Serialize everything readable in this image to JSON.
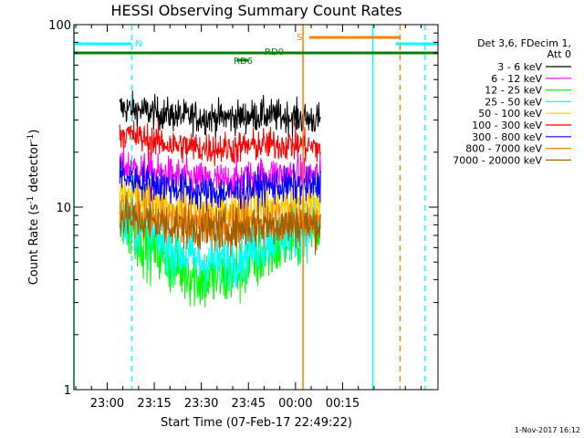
{
  "chart_data": {
    "type": "line",
    "title": "HESSI Observing Summary Count Rates",
    "xlabel": "Start Time (07-Feb-17 22:49:22)",
    "ylabel_main": "Count Rate (s",
    "ylabel_sup1": "-1",
    "ylabel_mid": " detector",
    "ylabel_sup2": "-1",
    "ylabel_end": ")",
    "y_scale": "log",
    "ylim": [
      1,
      100
    ],
    "xlim_minutes": [
      -10.6,
      105.4
    ],
    "x_ticks": [
      {
        "minutes": 0,
        "label": "23:00"
      },
      {
        "minutes": 15,
        "label": "23:15"
      },
      {
        "minutes": 30,
        "label": "23:30"
      },
      {
        "minutes": 45,
        "label": "23:45"
      },
      {
        "minutes": 60,
        "label": "00:00"
      },
      {
        "minutes": 75,
        "label": "00:15"
      }
    ],
    "y_ticks": [
      {
        "value": 1,
        "label": "1"
      },
      {
        "value": 10,
        "label": "10"
      },
      {
        "value": 100,
        "label": "100"
      }
    ],
    "data_span_minutes": [
      4,
      68
    ],
    "legend_header": [
      "Det 3,6, FDecim 1,",
      "Att 0"
    ],
    "legend_position": "right",
    "series": [
      {
        "name": "3 - 6 keV",
        "color": "#000000",
        "minutes": [
          4,
          10,
          20,
          30,
          40,
          50,
          60,
          68
        ],
        "values": [
          35,
          34,
          32,
          31,
          31,
          32,
          31,
          30
        ],
        "noise": 0.045
      },
      {
        "name": "6 - 12 keV",
        "color": "#ff00ff",
        "minutes": [
          4,
          10,
          20,
          30,
          40,
          50,
          60,
          68
        ],
        "values": [
          17,
          16,
          15,
          14,
          14,
          15,
          15,
          15
        ],
        "noise": 0.05
      },
      {
        "name": "12 - 25 keV",
        "color": "#00ff00",
        "minutes": [
          4,
          10,
          20,
          30,
          40,
          50,
          60,
          68
        ],
        "values": [
          9,
          7,
          5,
          4,
          4.2,
          5.5,
          7,
          8
        ],
        "noise": 0.09
      },
      {
        "name": "25 - 50 keV",
        "color": "#00ffff",
        "minutes": [
          4,
          10,
          20,
          30,
          40,
          50,
          60,
          68
        ],
        "values": [
          9.5,
          8,
          6,
          5,
          5.2,
          6.5,
          7.5,
          8
        ],
        "noise": 0.08
      },
      {
        "name": "50 - 100 keV",
        "color": "#ffcc00",
        "minutes": [
          4,
          10,
          20,
          30,
          40,
          50,
          60,
          68
        ],
        "values": [
          12,
          11,
          10,
          9.5,
          9.5,
          10,
          10.5,
          10.5
        ],
        "noise": 0.06
      },
      {
        "name": "100 - 300 keV",
        "color": "#ff0000",
        "minutes": [
          4,
          10,
          20,
          30,
          40,
          50,
          60,
          68
        ],
        "values": [
          26,
          24,
          22,
          21,
          21,
          22,
          22,
          21
        ],
        "noise": 0.045
      },
      {
        "name": "300 - 800 keV",
        "color": "#0000ff",
        "minutes": [
          4,
          10,
          20,
          30,
          40,
          50,
          60,
          68
        ],
        "values": [
          15,
          14,
          13,
          12,
          12,
          13,
          13,
          13
        ],
        "noise": 0.05
      },
      {
        "name": "800 - 7000 keV",
        "color": "#ff8000",
        "minutes": [
          4,
          10,
          20,
          30,
          40,
          50,
          60,
          68
        ],
        "values": [
          10,
          9,
          8.5,
          8,
          8,
          8.5,
          8.5,
          8.5
        ],
        "noise": 0.06
      },
      {
        "name": "7000 - 20000 keV",
        "color": "#a06000",
        "minutes": [
          4,
          10,
          20,
          30,
          40,
          50,
          60,
          68
        ],
        "values": [
          9,
          8.5,
          8,
          7.6,
          7.6,
          8,
          8,
          8
        ],
        "noise": 0.06
      }
    ],
    "annotations": {
      "n_label": "N",
      "s_label": "S",
      "rd0_label": "RD0",
      "rd6_label": "RD6",
      "night_color": "#00ffff",
      "saa_color": "#ff8000",
      "decim_color": "#008000",
      "night_bars_minutes": [
        [
          -10.6,
          7.8
        ],
        [
          91.9,
          105.4
        ]
      ],
      "night_solid_lines_minutes": [
        -10.6,
        84.6
      ],
      "night_dashed_lines_minutes": [
        7.8,
        101.3
      ],
      "saa_bar_minutes": [
        64.4,
        93.3
      ],
      "saa_solid_line_minutes": [
        62.4
      ],
      "saa_dashed_line_minutes": [
        93.3
      ],
      "decim_bar_minutes": [
        -10.6,
        105.4
      ],
      "rd6_bar_minutes": [
        41.3,
        44.9
      ]
    },
    "timestamp": "1-Nov-2017 16:12"
  }
}
